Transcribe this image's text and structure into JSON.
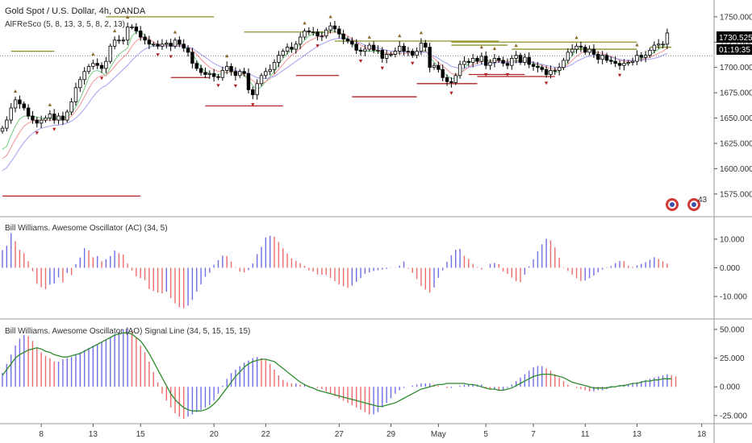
{
  "header": {
    "title": "Gold Spot / U.S. Dollar, 4h, OANDA",
    "indicator": "AlFReSco (5, 8, 13, 3, 5, 8, 2, 13)"
  },
  "price_tag": {
    "price": "1730.525",
    "countdown": "01:19:35"
  },
  "flag_badge": "43",
  "colors": {
    "up": "#ffffff",
    "down": "#000000",
    "wick": "#000000",
    "ma_green": "#7fcf8a",
    "ma_red": "#f19a9a",
    "ma_blue": "#a7a7f2",
    "resistance": "#8f8f28",
    "support": "#b22222",
    "bar_blue": "#6f6fe8",
    "bar_red": "#ef6b6b",
    "signal": "#2e8b2e",
    "grid": "#e6e6e6",
    "separator": "#9a9a9a"
  },
  "chart_data": [
    {
      "type": "candlestick",
      "title": "Gold Spot / U.S. Dollar, 4h, OANDA",
      "x_ticks": [
        "8",
        "13",
        "15",
        "20",
        "22",
        "27",
        "29",
        "May",
        "5",
        "7",
        "11",
        "13",
        "18"
      ],
      "ylim": [
        1555,
        1765
      ],
      "y_ticks": [
        "1750.000",
        "1725.000",
        "1700.000",
        "1675.000",
        "1650.000",
        "1625.000",
        "1600.000",
        "1575.000"
      ],
      "close": [
        1640,
        1648,
        1660,
        1668,
        1664,
        1660,
        1652,
        1648,
        1645,
        1648,
        1650,
        1654,
        1648,
        1652,
        1648,
        1656,
        1666,
        1680,
        1688,
        1696,
        1701,
        1704,
        1702,
        1699,
        1706,
        1721,
        1727,
        1727,
        1727,
        1740,
        1740,
        1736,
        1730,
        1727,
        1723,
        1723,
        1721,
        1723,
        1724,
        1721,
        1727,
        1723,
        1719,
        1715,
        1704,
        1699,
        1695,
        1693,
        1694,
        1691,
        1690,
        1697,
        1701,
        1696,
        1692,
        1696,
        1694,
        1678,
        1673,
        1684,
        1692,
        1696,
        1698,
        1705,
        1712,
        1716,
        1720,
        1718,
        1723,
        1730,
        1736,
        1735,
        1735,
        1731,
        1731,
        1737,
        1741,
        1738,
        1733,
        1728,
        1726,
        1723,
        1717,
        1716,
        1718,
        1722,
        1717,
        1717,
        1709,
        1713,
        1713,
        1716,
        1721,
        1716,
        1716,
        1712,
        1716,
        1724,
        1720,
        1700,
        1702,
        1698,
        1690,
        1686,
        1685,
        1692,
        1703,
        1706,
        1705,
        1709,
        1706,
        1711,
        1702,
        1705,
        1709,
        1707,
        1704,
        1702,
        1709,
        1712,
        1705,
        1710,
        1703,
        1701,
        1700,
        1698,
        1693,
        1697,
        1697,
        1700,
        1707,
        1715,
        1718,
        1721,
        1720,
        1715,
        1718,
        1713,
        1708,
        1712,
        1707,
        1706,
        1704,
        1702,
        1704,
        1705,
        1706,
        1712,
        1710,
        1712,
        1717,
        1722,
        1723,
        1723,
        1734
      ],
      "series": [
        {
          "name": "5",
          "color": "#7fcf8a",
          "values": [
            1619,
            1622,
            1633,
            1642,
            1649,
            1652,
            1652,
            1652,
            1651,
            1650,
            1649,
            1650,
            1649,
            1650,
            1650,
            1651,
            1655,
            1661,
            1669,
            1679,
            1690,
            1696,
            1697,
            1695,
            1692,
            1700,
            1707,
            1713,
            1716,
            1719,
            1731,
            1735,
            1735,
            1732,
            1725,
            1721,
            1721,
            1722,
            1723,
            1722,
            1723,
            1723,
            1721,
            1718,
            1713,
            1707,
            1700,
            1696,
            1694,
            1693,
            1693,
            1694,
            1695,
            1696,
            1695,
            1694,
            1692,
            1688,
            1682,
            1678,
            1681,
            1686,
            1691,
            1696,
            1703,
            1709,
            1714,
            1717,
            1719,
            1723,
            1727,
            1731,
            1733,
            1734,
            1734,
            1735,
            1736,
            1736,
            1734,
            1731,
            1728,
            1724,
            1719,
            1716,
            1716,
            1716,
            1716,
            1716,
            1713,
            1713,
            1713,
            1713,
            1715,
            1716,
            1716,
            1714,
            1714,
            1716,
            1717,
            1711,
            1705,
            1701,
            1696,
            1692,
            1689,
            1689,
            1693,
            1699,
            1704,
            1707,
            1707,
            1708,
            1707,
            1707,
            1707,
            1707,
            1706,
            1705,
            1706,
            1707,
            1707,
            1707,
            1706,
            1704,
            1702,
            1700,
            1697,
            1695,
            1695,
            1696,
            1700,
            1706,
            1712,
            1717,
            1719,
            1719,
            1718,
            1716,
            1713,
            1711,
            1709,
            1707,
            1705,
            1703,
            1703,
            1704,
            1706,
            1708,
            1709,
            1710,
            1712,
            1715,
            1718,
            1720,
            1724
          ]
        },
        {
          "name": "8",
          "color": "#f19a9a",
          "values": [
            1610,
            1613,
            1621,
            1629,
            1636,
            1642,
            1645,
            1647,
            1648,
            1648,
            1648,
            1648,
            1648,
            1648,
            1648,
            1649,
            1652,
            1657,
            1663,
            1671,
            1679,
            1686,
            1690,
            1692,
            1692,
            1696,
            1701,
            1706,
            1710,
            1714,
            1721,
            1726,
            1729,
            1730,
            1728,
            1725,
            1723,
            1722,
            1722,
            1722,
            1722,
            1722,
            1721,
            1720,
            1717,
            1713,
            1708,
            1704,
            1700,
            1698,
            1696,
            1696,
            1695,
            1695,
            1695,
            1694,
            1693,
            1690,
            1687,
            1684,
            1684,
            1686,
            1689,
            1693,
            1698,
            1703,
            1708,
            1712,
            1715,
            1719,
            1723,
            1726,
            1728,
            1730,
            1731,
            1733,
            1734,
            1735,
            1734,
            1733,
            1731,
            1728,
            1725,
            1722,
            1720,
            1719,
            1718,
            1717,
            1715,
            1714,
            1714,
            1714,
            1714,
            1714,
            1714,
            1714,
            1714,
            1715,
            1716,
            1712,
            1709,
            1705,
            1701,
            1698,
            1694,
            1693,
            1694,
            1697,
            1700,
            1703,
            1704,
            1706,
            1706,
            1706,
            1706,
            1706,
            1706,
            1706,
            1706,
            1706,
            1706,
            1706,
            1706,
            1705,
            1703,
            1702,
            1700,
            1699,
            1698,
            1698,
            1700,
            1703,
            1707,
            1711,
            1714,
            1716,
            1717,
            1716,
            1715,
            1714,
            1712,
            1711,
            1709,
            1707,
            1706,
            1706,
            1706,
            1707,
            1708,
            1709,
            1710,
            1712,
            1714,
            1716,
            1719
          ]
        },
        {
          "name": "13",
          "color": "#a7a7f2",
          "values": [
            1598,
            1601,
            1607,
            1613,
            1620,
            1626,
            1631,
            1635,
            1638,
            1640,
            1641,
            1642,
            1643,
            1643,
            1644,
            1645,
            1647,
            1650,
            1654,
            1659,
            1665,
            1671,
            1676,
            1680,
            1682,
            1686,
            1690,
            1694,
            1698,
            1702,
            1707,
            1711,
            1715,
            1718,
            1720,
            1721,
            1721,
            1721,
            1721,
            1721,
            1721,
            1721,
            1721,
            1720,
            1719,
            1716,
            1713,
            1710,
            1707,
            1704,
            1702,
            1700,
            1699,
            1698,
            1697,
            1696,
            1695,
            1694,
            1692,
            1690,
            1689,
            1689,
            1690,
            1691,
            1694,
            1697,
            1700,
            1703,
            1706,
            1709,
            1712,
            1715,
            1718,
            1721,
            1723,
            1725,
            1727,
            1728,
            1729,
            1729,
            1728,
            1727,
            1725,
            1724,
            1722,
            1721,
            1720,
            1719,
            1718,
            1717,
            1716,
            1716,
            1716,
            1715,
            1715,
            1715,
            1715,
            1715,
            1715,
            1713,
            1711,
            1709,
            1706,
            1704,
            1701,
            1700,
            1699,
            1699,
            1700,
            1701,
            1702,
            1703,
            1704,
            1704,
            1704,
            1705,
            1705,
            1705,
            1705,
            1705,
            1705,
            1705,
            1705,
            1705,
            1704,
            1703,
            1702,
            1701,
            1700,
            1700,
            1700,
            1701,
            1703,
            1706,
            1708,
            1710,
            1711,
            1712,
            1712,
            1712,
            1711,
            1710,
            1709,
            1708,
            1707,
            1707,
            1707,
            1707,
            1707,
            1708,
            1708,
            1709,
            1710,
            1712,
            1714
          ]
        }
      ],
      "resistance_lines": [
        {
          "from": 2,
          "to": 12,
          "value": 1716
        },
        {
          "from": 24,
          "to": 49,
          "value": 1750
        },
        {
          "from": 56,
          "to": 76,
          "value": 1735
        },
        {
          "from": 77,
          "to": 115,
          "value": 1726
        },
        {
          "from": 104,
          "to": 117,
          "value": 1722
        },
        {
          "from": 104,
          "to": 147,
          "value": 1725
        },
        {
          "from": 118,
          "to": 147,
          "value": 1718
        },
        {
          "from": 150,
          "to": 155,
          "value": 1720
        }
      ],
      "support_lines": [
        {
          "from": 0,
          "to": 32,
          "value": 1573
        },
        {
          "from": 39,
          "to": 48,
          "value": 1690
        },
        {
          "from": 47,
          "to": 65,
          "value": 1662
        },
        {
          "from": 68,
          "to": 78,
          "value": 1692
        },
        {
          "from": 81,
          "to": 96,
          "value": 1671
        },
        {
          "from": 96,
          "to": 110,
          "value": 1684
        },
        {
          "from": 108,
          "to": 121,
          "value": 1693
        },
        {
          "from": 110,
          "to": 128,
          "value": 1691
        }
      ]
    },
    {
      "type": "bar",
      "title": "Bill Williams. Awesome Oscillator (AC) (34, 5)",
      "ylim": [
        -17,
        17
      ],
      "y_ticks": [
        "10.000",
        "0.000",
        "-10.000"
      ],
      "values": [
        6.2,
        7.7,
        12.1,
        9.3,
        6.3,
        5.1,
        2.3,
        -1.2,
        -5.6,
        -6.8,
        -7.5,
        -5.9,
        -5.5,
        -3.4,
        -5.1,
        -1.8,
        -2.6,
        1.3,
        3.6,
        6.9,
        6.1,
        3.7,
        4.1,
        2.3,
        3.0,
        4.1,
        6.0,
        5.1,
        4.6,
        1.5,
        -0.9,
        -3.0,
        -3.6,
        -4.3,
        -7.4,
        -8.1,
        -8.6,
        -8.9,
        -8.3,
        -10.6,
        -12.4,
        -13.7,
        -14.1,
        -13.2,
        -11.2,
        -8.3,
        -5.8,
        -3.1,
        -1.7,
        1.1,
        2.7,
        4.2,
        4.1,
        2.2,
        0.2,
        -1.3,
        -1.6,
        -0.8,
        1.5,
        4.8,
        7.3,
        10.6,
        11.2,
        10.9,
        9.0,
        6.8,
        5.0,
        3.3,
        2.4,
        1.6,
        0.7,
        -0.9,
        -1.3,
        -2.3,
        -2.4,
        -2.5,
        -3.5,
        -4.6,
        -5.8,
        -6.4,
        -7.0,
        -6.2,
        -4.9,
        -3.6,
        -2.1,
        -1.6,
        -1.1,
        -0.8,
        -0.6,
        -0.4,
        0.1,
        -0.1,
        0.8,
        2.2,
        -0.3,
        -1.8,
        -3.9,
        -6.4,
        -7.6,
        -8.6,
        -6.9,
        -3.5,
        -0.9,
        2.1,
        4.4,
        6.3,
        6.6,
        4.2,
        3.1,
        1.4,
        0.3,
        -0.6,
        0.0,
        1.4,
        1.7,
        1.3,
        -1.3,
        -2.1,
        -3.4,
        -4.7,
        -5.0,
        -2.4,
        0.5,
        3.0,
        5.8,
        8.2,
        10.1,
        9.6,
        7.1,
        3.5,
        0.2,
        -1.1,
        -2.4,
        -3.6,
        -4.6,
        -4.4,
        -3.6,
        -2.7,
        -1.6,
        -0.6,
        -0.1,
        0.6,
        1.6,
        2.4,
        2.3,
        0.8,
        0.3,
        0.9,
        1.4,
        2.0,
        2.8,
        3.7,
        3.1,
        2.3,
        1.5
      ]
    },
    {
      "type": "bar",
      "title": "Bill Williams. Awesome Oscillator (AO) Signal Line (34, 5, 15, 15, 15)",
      "ylim": [
        -30,
        57
      ],
      "y_ticks": [
        "50.000",
        "25.000",
        "0.000",
        "-25.000"
      ],
      "values": [
        12,
        20,
        28,
        36,
        42,
        45,
        44,
        40,
        34,
        30,
        27,
        25,
        22,
        22,
        24,
        25,
        26,
        28,
        30,
        32,
        34,
        36,
        37,
        39,
        41,
        43,
        46,
        48,
        50,
        51,
        49,
        43,
        36,
        30,
        22,
        13,
        4,
        -6,
        -12,
        -18,
        -23,
        -26,
        -28,
        -26,
        -24,
        -22,
        -20,
        -18,
        -16,
        -12,
        -6,
        1,
        7,
        12,
        15,
        18,
        21,
        23,
        25,
        26,
        25,
        24,
        20,
        15,
        10,
        6,
        4,
        3,
        3,
        2,
        2,
        1,
        0,
        -1,
        -2,
        -4,
        -6,
        -8,
        -10,
        -12,
        -14,
        -16,
        -18,
        -20,
        -22,
        -24,
        -24,
        -22,
        -18,
        -14,
        -10,
        -6,
        -3,
        -1,
        0,
        1,
        2,
        3,
        3,
        3,
        2,
        1,
        0,
        -1,
        -1,
        0,
        1,
        2,
        2,
        2,
        2,
        2,
        -1,
        -2,
        -2,
        -3,
        -3,
        -1,
        2,
        5,
        8,
        11,
        14,
        17,
        18,
        18,
        16,
        14,
        11,
        8,
        5,
        2,
        0,
        -1,
        -2,
        -3,
        -4,
        -4,
        -3,
        -3,
        -2,
        -1,
        0,
        1,
        2,
        2,
        3,
        4,
        5,
        6,
        7,
        8,
        9,
        10,
        11,
        10,
        9
      ],
      "signal": [
        10,
        15,
        20,
        25,
        28,
        30,
        32,
        33,
        34,
        33,
        31,
        30,
        28,
        27,
        26,
        26,
        27,
        28,
        29,
        31,
        33,
        35,
        37,
        39,
        41,
        43,
        45,
        46,
        47,
        47,
        46,
        43,
        40,
        35,
        29,
        22,
        15,
        8,
        1,
        -6,
        -11,
        -15,
        -18,
        -20,
        -21,
        -21,
        -21,
        -20,
        -18,
        -15,
        -11,
        -6,
        -1,
        4,
        9,
        13,
        17,
        20,
        22,
        23,
        24,
        24,
        23,
        22,
        19,
        16,
        13,
        10,
        7,
        4,
        2,
        0,
        -1,
        -3,
        -4,
        -5,
        -6,
        -7,
        -8,
        -9,
        -10,
        -11,
        -12,
        -13,
        -14,
        -15,
        -16,
        -17,
        -17,
        -16,
        -15,
        -14,
        -12,
        -10,
        -8,
        -6,
        -4,
        -2,
        -1,
        0,
        1,
        2,
        2,
        3,
        3,
        3,
        3,
        3,
        2,
        2,
        1,
        0,
        -1,
        -2,
        -2,
        -3,
        -3,
        -2,
        -1,
        1,
        3,
        5,
        7,
        9,
        10,
        11,
        11,
        11,
        10,
        9,
        8,
        6,
        4,
        3,
        2,
        1,
        0,
        -1,
        -1,
        -1,
        -1,
        0,
        0,
        1,
        1,
        2,
        3,
        3,
        4,
        5,
        5,
        6,
        6,
        7,
        7,
        7
      ]
    }
  ]
}
